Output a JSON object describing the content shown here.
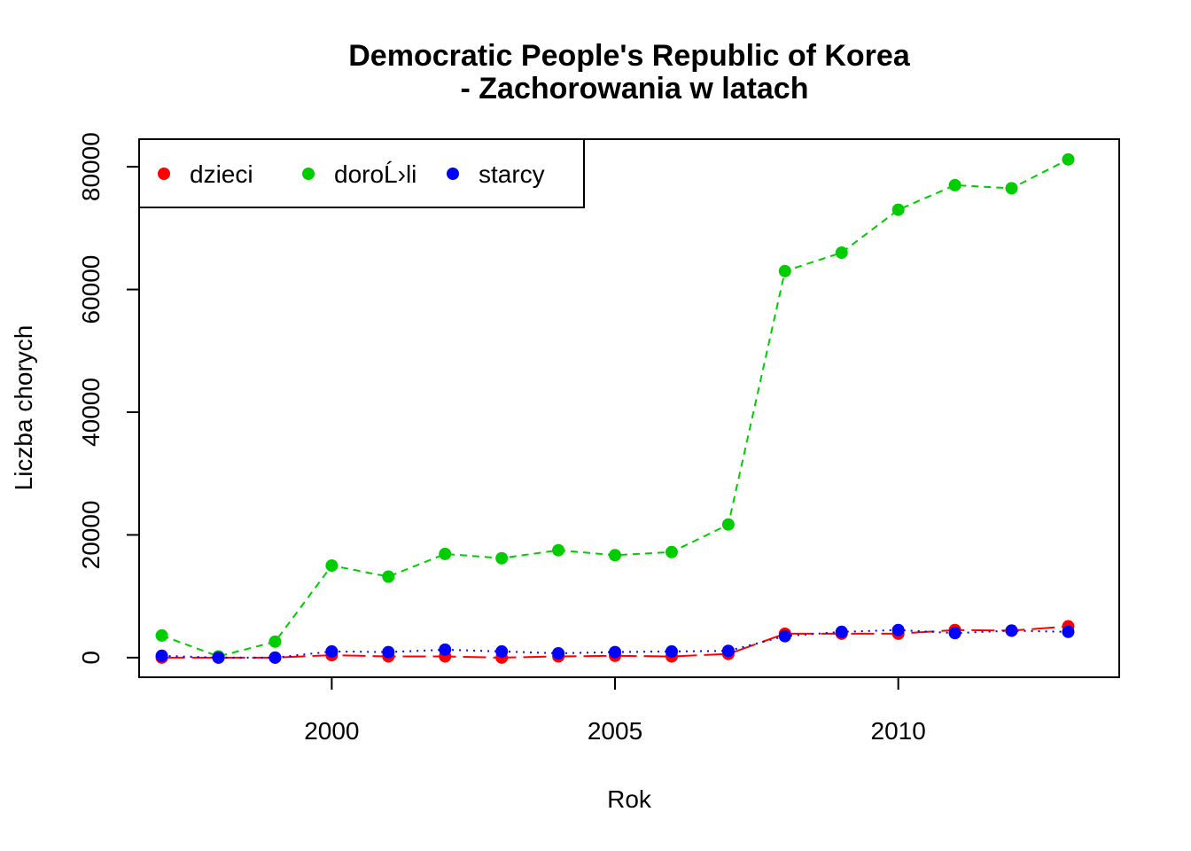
{
  "chart_data": {
    "type": "line",
    "title_line1": "Democratic People's Republic of Korea",
    "title_line2": "- Zachorowania w latach",
    "xlabel": "Rok",
    "ylabel": "Liczba chorych",
    "xlim": [
      1996.6,
      2013.9
    ],
    "ylim": [
      -3200,
      84500
    ],
    "x_ticks": [
      2000,
      2005,
      2010
    ],
    "y_ticks": [
      0,
      20000,
      40000,
      60000,
      80000
    ],
    "legend_position": "top-left",
    "x": [
      1997,
      1998,
      1999,
      2000,
      2001,
      2002,
      2003,
      2004,
      2005,
      2006,
      2007,
      2008,
      2009,
      2010,
      2011,
      2012,
      2013
    ],
    "series": [
      {
        "name": "dzieci",
        "color": "#ff0000",
        "line_style": "longdash",
        "values": [
          0,
          0,
          0,
          400,
          200,
          200,
          0,
          200,
          300,
          200,
          600,
          3900,
          3900,
          3900,
          4500,
          4400,
          5100
        ]
      },
      {
        "name": "doroĹ›li",
        "color": "#00cd00",
        "line_style": "dashed",
        "values": [
          3600,
          200,
          2600,
          15000,
          13200,
          16900,
          16200,
          17500,
          16700,
          17200,
          21700,
          63000,
          66000,
          73000,
          77000,
          76500,
          81200
        ]
      },
      {
        "name": "starcy",
        "color": "#0000ff",
        "line_style": "dotted",
        "values": [
          300,
          0,
          0,
          1000,
          900,
          1300,
          1000,
          700,
          900,
          1000,
          1100,
          3500,
          4200,
          4500,
          4000,
          4400,
          4200
        ]
      }
    ]
  }
}
